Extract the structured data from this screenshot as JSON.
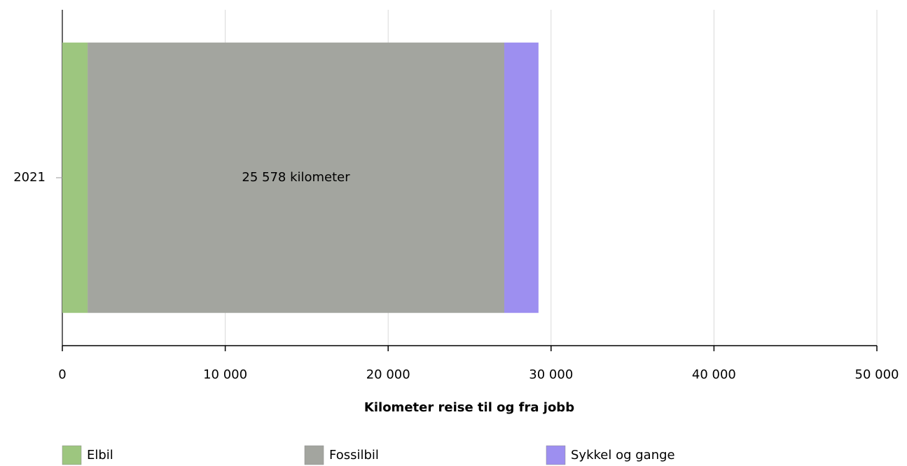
{
  "chart_data": {
    "type": "stacked_barh",
    "categories": [
      "2021"
    ],
    "series": [
      {
        "name": "Elbil",
        "color": "#9dc67f",
        "values": [
          1550
        ]
      },
      {
        "name": "Fossilbil",
        "color": "#a3a59f",
        "values": [
          25578
        ],
        "value_labels": [
          "25 578 kilometer"
        ]
      },
      {
        "name": "Sykkel og gange",
        "color": "#9d8ff0",
        "values": [
          2100
        ]
      }
    ],
    "xlabel": "Kilometer reise til og fra jobb",
    "xlim": [
      0,
      50000
    ],
    "xticks": [
      0,
      {
        "value": 10000,
        "label": "10 000"
      },
      {
        "value": 20000,
        "label": "20 000"
      },
      {
        "value": 30000,
        "label": "30 000"
      },
      {
        "value": 40000,
        "label": "40 000"
      },
      {
        "value": 50000,
        "label": "50 000"
      }
    ],
    "grid": true,
    "legend": "bottom"
  }
}
